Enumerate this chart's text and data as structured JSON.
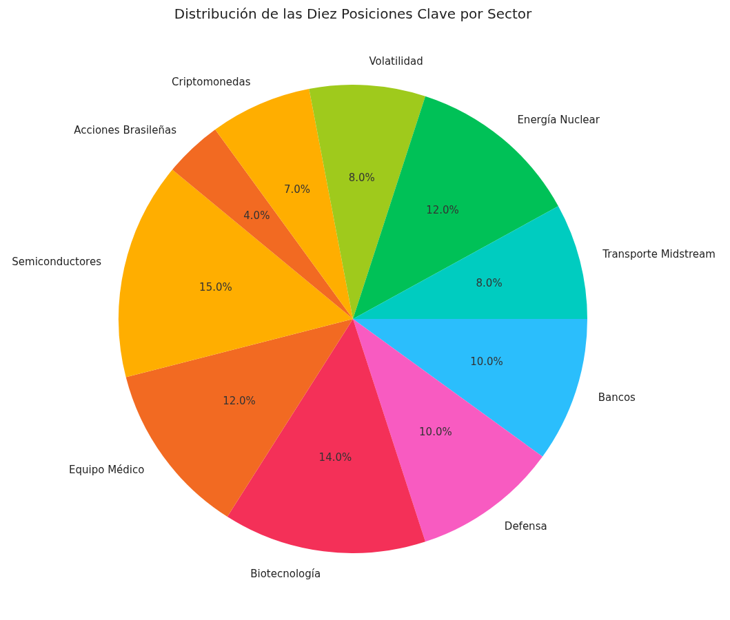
{
  "chart_data": {
    "type": "pie",
    "title": "Distribución de las Diez Posiciones Clave por Sector",
    "categories": [
      "Transporte Midstream",
      "Energía Nuclear",
      "Volatilidad",
      "Criptomonedas",
      "Acciones Brasileñas",
      "Semiconductores",
      "Equipo Médico",
      "Biotecnología",
      "Defensa",
      "Bancos"
    ],
    "values": [
      8,
      12,
      8,
      7,
      4,
      15,
      12,
      14,
      10,
      10
    ],
    "value_labels": [
      "8.0%",
      "12.0%",
      "8.0%",
      "7.0%",
      "4.0%",
      "15.0%",
      "12.0%",
      "14.0%",
      "10.0%",
      "10.0%"
    ],
    "colors": [
      "#00ccc0",
      "#00c157",
      "#9fca1c",
      "#ffae00",
      "#f26a22",
      "#ffae00",
      "#f26a22",
      "#f43058",
      "#f85bc1",
      "#2bbefc"
    ],
    "legend": false
  }
}
